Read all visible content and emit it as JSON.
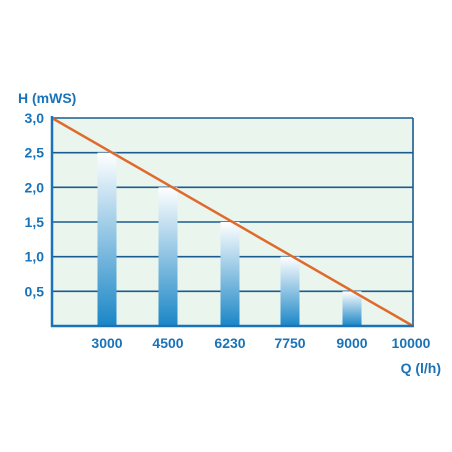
{
  "chart_data": {
    "type": "bar",
    "xlabel": "Q (l/h)",
    "ylabel": "H (mWS)",
    "categories": [
      "3000",
      "4500",
      "6230",
      "7750",
      "9000"
    ],
    "values": [
      2.5,
      2.0,
      1.5,
      1.0,
      0.5
    ],
    "x_ticks": [
      "3000",
      "4500",
      "6230",
      "7750",
      "9000",
      "10000"
    ],
    "y_ticks": [
      "0,5",
      "1,0",
      "1,5",
      "2,0",
      "2,5",
      "3,0"
    ],
    "ylim": [
      0,
      3.0
    ],
    "grid": true,
    "line": {
      "from": 3.0,
      "to": 0,
      "color": "#e06a2c"
    },
    "colors": {
      "axis": "#1a73b8",
      "plot_bg": "#eaf5ee",
      "grid": "#1a5c8f",
      "bar_top": "#ffffff",
      "bar_bottom": "#1a86c6"
    }
  }
}
